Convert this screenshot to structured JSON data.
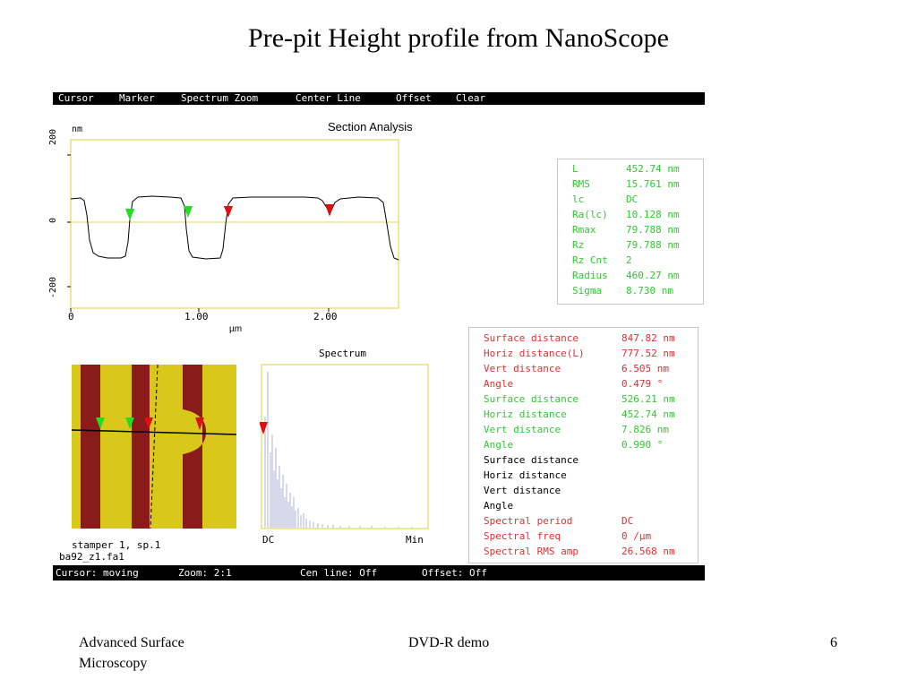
{
  "slide_title": "Pre-pit Height profile from NanoScope",
  "menu": [
    "Cursor",
    "Marker",
    "Spectrum Zoom",
    "Center Line",
    "Offset",
    "Clear"
  ],
  "section": {
    "title": "Section Analysis",
    "unit_label": "nm",
    "x_label": "µm",
    "y_ticks": [
      "200",
      "0",
      "-200"
    ],
    "x_ticks": [
      "0",
      "1.00",
      "2.00"
    ]
  },
  "stats": [
    {
      "k": "L",
      "v": "452.74 nm"
    },
    {
      "k": "RMS",
      "v": "15.761 nm"
    },
    {
      "k": "lc",
      "v": "DC"
    },
    {
      "k": "Ra(lc)",
      "v": "10.128 nm"
    },
    {
      "k": "Rmax",
      "v": "79.788 nm"
    },
    {
      "k": "Rz",
      "v": "79.788 nm"
    },
    {
      "k": "Rz Cnt",
      "v": "2"
    },
    {
      "k": "Radius",
      "v": "460.27 nm"
    },
    {
      "k": "Sigma",
      "v": "8.730 nm"
    }
  ],
  "measurements": [
    {
      "k": "Surface distance",
      "v": "847.82 nm",
      "color": "#e03030"
    },
    {
      "k": "Horiz distance(L)",
      "v": "777.52 nm",
      "color": "#e03030"
    },
    {
      "k": "Vert distance",
      "v": "6.505 nm",
      "color": "#e03030"
    },
    {
      "k": "Angle",
      "v": "0.479 °",
      "color": "#e03030"
    },
    {
      "k": "Surface distance",
      "v": "526.21 nm",
      "color": "#30c830"
    },
    {
      "k": "Horiz distance",
      "v": "452.74 nm",
      "color": "#30c830"
    },
    {
      "k": "Vert distance",
      "v": "7.826 nm",
      "color": "#30c830"
    },
    {
      "k": "Angle",
      "v": "0.990 °",
      "color": "#30c830"
    },
    {
      "k": "Surface distance",
      "v": "",
      "color": "#000000"
    },
    {
      "k": "Horiz distance",
      "v": "",
      "color": "#000000"
    },
    {
      "k": "Vert distance",
      "v": "",
      "color": "#000000"
    },
    {
      "k": "Angle",
      "v": "",
      "color": "#000000"
    },
    {
      "k": "Spectral period",
      "v": "DC",
      "color": "#e03030"
    },
    {
      "k": "Spectral freq",
      "v": "0 /µm",
      "color": "#e03030"
    },
    {
      "k": "Spectral RMS amp",
      "v": "26.568 nm",
      "color": "#e03030"
    }
  ],
  "spectrum": {
    "title": "Spectrum",
    "left_label": "DC",
    "right_label": "Min"
  },
  "image_caption": {
    "line1": "stamper 1, sp.1",
    "line2": "ba92_z1.fa1"
  },
  "status": [
    "Cursor: moving",
    "Zoom: 2:1",
    "Cen line: Off",
    "Offset: Off"
  ],
  "footer": {
    "left_line1": "Advanced Surface",
    "left_line2": "Microscopy",
    "center": "DVD-R demo",
    "page": "6"
  },
  "colors": {
    "green_marker": "#22dd22",
    "red_marker": "#dd1111",
    "stripe_dark": "#8b1a1a",
    "stripe_light": "#d8c81a",
    "panel_border": "#e8e07a"
  }
}
